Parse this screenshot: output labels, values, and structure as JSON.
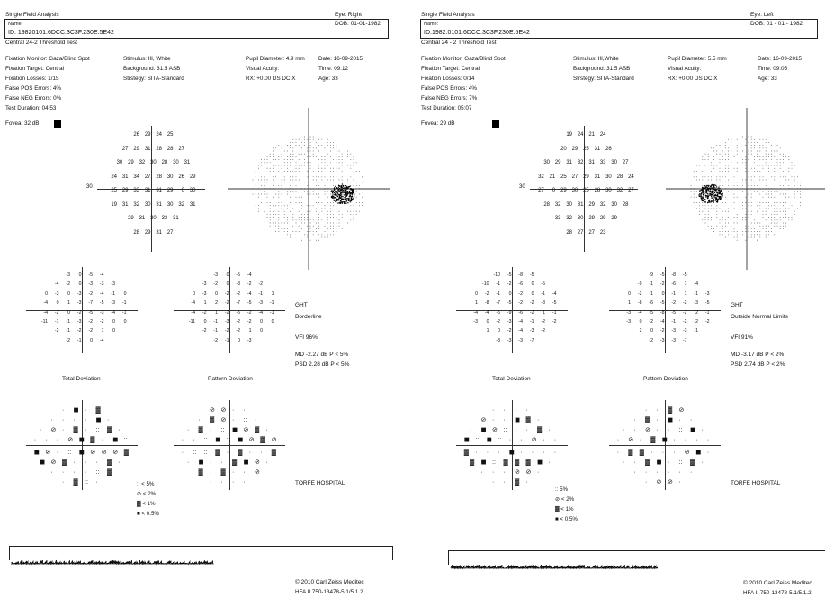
{
  "reports": [
    {
      "title": "Single Field Analysis",
      "name_label": "Name:",
      "id_text": "ID: 19820101.6DCC.3C3F.230E.5E42",
      "eye": "Eye: Right",
      "dob": "DOB: 01-01-1982",
      "test_name": "Central 24-2 Threshold Test",
      "fixation_monitor": "Fixation Monitor: Gaza/Blind Spot",
      "fixation_target": "Fixation Target: Central",
      "fixation_losses": "Fixation Losses: 1/15",
      "false_pos": "False POS Errors:  4%",
      "false_neg": "False NEG Errors:  0%",
      "test_duration": "Test Duration: 04:53",
      "fovea": "Fovea: 32 dB",
      "stimulus": "Stimulus: III, White",
      "background": "Background: 31.5 ASB",
      "strategy": "Strstegy: SITA-Standard",
      "pupil": "Pupil Diameter: 4.9 mm",
      "visual_acuity": "Visual Acuity:",
      "rx": "RX: +0.00 DS     DC  X",
      "date": "Date: 16-09-2015",
      "time": "Time: 09:12",
      "age": "Age: 33",
      "axis_label": "30",
      "threshold_rows": [
        [
          "26",
          "29",
          "24",
          "25"
        ],
        [
          "27",
          "29",
          "31",
          "28",
          "28",
          "27"
        ],
        [
          "30",
          "29",
          "32",
          "30",
          "28",
          "30",
          "31"
        ],
        [
          "24",
          "31",
          "34",
          "27",
          "28",
          "30",
          "26",
          "29"
        ],
        [
          "25",
          "29",
          "33",
          "31",
          "31",
          "29",
          "0",
          "30"
        ],
        [
          "19",
          "31",
          "32",
          "30",
          "31",
          "30",
          "32",
          "31"
        ],
        [
          "29",
          "31",
          "30",
          "33",
          "31"
        ],
        [
          "28",
          "29",
          "31",
          "27"
        ]
      ],
      "total_dev_rows": [
        [
          "-3",
          "0",
          "-5",
          "-4"
        ],
        [
          "-4",
          "-2",
          "0",
          "-3",
          "-3",
          "-3"
        ],
        [
          "0",
          "-3",
          "0",
          "-3",
          "-2",
          "-4",
          "-1",
          "0"
        ],
        [
          "-4",
          "0",
          "1",
          "-3",
          "-7",
          "-5",
          "-3",
          "-1"
        ],
        [
          "-4",
          "-2",
          "0",
          "-2",
          "-5",
          "-3",
          "-4",
          "-1"
        ],
        [
          "-11",
          "-1",
          "-1",
          "-3",
          "-2",
          "-2",
          "0",
          "0"
        ],
        [
          "-2",
          "-1",
          "-2",
          "-2",
          "1",
          "0"
        ],
        [
          "-2",
          "-1",
          "0",
          "-4"
        ]
      ],
      "pattern_dev_rows": [
        [
          "-3",
          "0",
          "-5",
          "-4"
        ],
        [
          "-3",
          "-2",
          "0",
          "-3",
          "-2",
          "-2"
        ],
        [
          "0",
          "-3",
          "0",
          "-2",
          "-2",
          "-4",
          "-1",
          "1"
        ],
        [
          "-4",
          "1",
          "2",
          "-2",
          "-7",
          "-5",
          "-3",
          "-1"
        ],
        [
          "-4",
          "-2",
          "1",
          "-2",
          "-5",
          "-2",
          "-4",
          "-1"
        ],
        [
          "-11",
          "0",
          "-1",
          "-3",
          "-2",
          "-2",
          "0",
          "0"
        ],
        [
          "-2",
          "-1",
          "-2",
          "-2",
          "1",
          "0"
        ],
        [
          "-2",
          "-1",
          "0",
          "-3"
        ]
      ],
      "total_dev_label": "Total Deviation",
      "pattern_dev_label": "Pattern Deviation",
      "ght_label": "GHT",
      "ght_value": "Borderline",
      "vfi": "VFI   96%",
      "md": "MD     -2.27 dB  P < 5%",
      "psd": "PSD    2.28 dB  P < 5%",
      "legend": [
        ":: < 5%",
        "⊘ < 2%",
        "▓ < 1%",
        "■ < 0.5%"
      ],
      "hospital": "TORFE HOSPITAL",
      "copyright": "© 2010 Carl Zeiss Meditec",
      "model": "HFA II 750-13478-5.1/5.1.2"
    },
    {
      "title": "Single Field Analysis",
      "name_label": "Name:",
      "id_text": "ID:1982.0101.6DCC.3C3F.230E.5E42",
      "eye": "Eye: Left",
      "dob": "DOB: 01 - 01 - 1982",
      "test_name": "Central 24 - 2 Threshold Test",
      "fixation_monitor": "Fixation Monitor: Gaza/Blind Spot",
      "fixation_target": "Fixation Target: Central",
      "fixation_losses": "Fixation Losses: 0/14",
      "false_pos": "False POS Errors:  4%",
      "false_neg": "False NEG Errors:  7%",
      "test_duration": "Test Duration: 05:07",
      "fovea": "Fovea: 29 dB",
      "stimulus": "Stimulus: III,White",
      "background": "Background: 31.5 ASB",
      "strategy": "Strstegy: SITA-Standard",
      "pupil": "Pupil Diameter: 5.5 mm",
      "visual_acuity": "Visual Acuity:",
      "rx": "RX: +0.00 DS     DC  X",
      "date": "Date: 16-09-2015",
      "time": "Time: 09:05",
      "age": "Age: 33",
      "axis_label": "30",
      "threshold_rows": [
        [
          "19",
          "24",
          "21",
          "24"
        ],
        [
          "20",
          "29",
          "25",
          "31",
          "26"
        ],
        [
          "30",
          "29",
          "31",
          "32",
          "31",
          "33",
          "30",
          "27"
        ],
        [
          "32",
          "21",
          "25",
          "27",
          "29",
          "31",
          "30",
          "28",
          "24"
        ],
        [
          "27",
          "0",
          "29",
          "30",
          "25",
          "28",
          "30",
          "32",
          "27"
        ],
        [
          "28",
          "32",
          "30",
          "31",
          "29",
          "32",
          "30",
          "28"
        ],
        [
          "33",
          "32",
          "30",
          "29",
          "29",
          "29"
        ],
        [
          "28",
          "27",
          "27",
          "23"
        ]
      ],
      "total_dev_rows": [
        [
          "-10",
          "-5",
          "-8",
          "-5"
        ],
        [
          "-10",
          "-1",
          "-2",
          "-6",
          "0",
          "-5"
        ],
        [
          "0",
          "-2",
          "-1",
          "0",
          "-2",
          "0",
          "-1",
          "-4"
        ],
        [
          "1",
          "-8",
          "-7",
          "-5",
          "-2",
          "-2",
          "-3",
          "-5"
        ],
        [
          "-4",
          "-4",
          "-5",
          "-9",
          "-6",
          "-2",
          "1",
          "-1"
        ],
        [
          "-3",
          "0",
          "-2",
          "-3",
          "-4",
          "-1",
          "-2",
          "-2"
        ],
        [
          "1",
          "0",
          "-2",
          "-4",
          "-3",
          "-2"
        ],
        [
          "-3",
          "-3",
          "-3",
          "-7"
        ]
      ],
      "pattern_dev_rows": [
        [
          "-9",
          "-5",
          "-8",
          "-5"
        ],
        [
          "-9",
          "-1",
          "-2",
          "-6",
          "1",
          "-4"
        ],
        [
          "0",
          "-2",
          "-1",
          "0",
          "-1",
          "1",
          "-1",
          "-3"
        ],
        [
          "1",
          "-8",
          "-6",
          "-5",
          "-2",
          "-2",
          "-3",
          "-5"
        ],
        [
          "-3",
          "-4",
          "-5",
          "-8",
          "-5",
          "-2",
          "2",
          "-1"
        ],
        [
          "-3",
          "0",
          "-2",
          "-4",
          "-1",
          "-2",
          "-2",
          "-2"
        ],
        [
          "2",
          "0",
          "-2",
          "-3",
          "-3",
          "-1"
        ],
        [
          "-2",
          "-3",
          "-3",
          "-7"
        ]
      ],
      "total_dev_label": "Total Deviation",
      "pattern_dev_label": "Pattern Deviation",
      "ght_label": "GHT",
      "ght_value": "Outside Normal Limits",
      "vfi": "VFI   91%",
      "md": "MD    -3.17 dB  P < 2%",
      "psd": "PSD   2.74 dB  P < 2%",
      "legend": [
        ":: 5%",
        "⊘ < 2%",
        "▓ < 1%",
        "■ < 0.5%"
      ],
      "hospital": "TORFE HOSPITAL",
      "copyright": "© 2010 Carl Zeiss Meditec",
      "model": "HFA II 750-13478-5.1/5.1.2"
    }
  ]
}
